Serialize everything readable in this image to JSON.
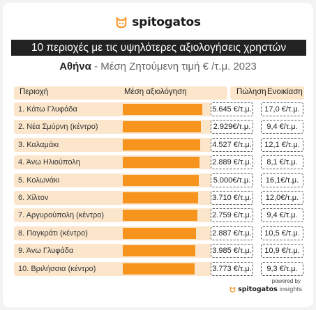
{
  "brand": {
    "name": "spitogatos",
    "powered_by": "powered by",
    "insights_brand": "spitogatos",
    "insights_suffix": "insights",
    "accent": "#f7941d"
  },
  "title": "10 περιοχές με τις υψηλότερες αξιολογήσεις χρηστών",
  "subtitle": {
    "city": "Αθήνα",
    "rest": " - Μέση Ζητούμενη τιμή € /τ.μ. 2023"
  },
  "headers": {
    "area": "Περιοχή",
    "rating": "Μέση αξιολόγηση",
    "sale": "Πώληση",
    "rent": "Ενοικίαση"
  },
  "chart_data": {
    "type": "table",
    "rows": [
      {
        "label": "1.  Κάτω Γλυφάδα",
        "rating": 1.0,
        "sale": "5.645 €/τ.μ.",
        "rent": "17,0 €/τ.μ."
      },
      {
        "label": "2.  Νέα Σμύρνη (κέντρο)",
        "rating": 0.985,
        "sale": "2.929€/τ.μ.",
        "rent": "9,4 €/τ.μ."
      },
      {
        "label": "3.  Καλαμάκι",
        "rating": 0.975,
        "sale": "4.527 €/τ.μ.",
        "rent": "12,1 €/τ.μ."
      },
      {
        "label": "4.  Άνω Ηλιούπολη",
        "rating": 0.965,
        "sale": "2.889 €/τ.μ.",
        "rent": "8,1 €/τ.μ."
      },
      {
        "label": "5.  Κολωνάκι",
        "rating": 0.955,
        "sale": "5.000€/τ.μ.",
        "rent": "16,1€/τ.μ."
      },
      {
        "label": "6.  Χίλτον",
        "rating": 0.945,
        "sale": "3.710 €/τ.μ.",
        "rent": "12,0€/τ.μ."
      },
      {
        "label": "7.  Αργυρούπολη (κέντρο)",
        "rating": 0.935,
        "sale": "2.759 €/τ.μ.",
        "rent": "9,4 €/τ.μ."
      },
      {
        "label": "8.  Παγκράτι (κέντρο)",
        "rating": 0.925,
        "sale": "2.887 €/τ.μ.",
        "rent": "10,5 €/τ.μ."
      },
      {
        "label": "9.  Άνω Γλυφάδα",
        "rating": 0.915,
        "sale": "3.985 €/τ.μ.",
        "rent": "10,9 €/τ.μ."
      },
      {
        "label": "10.  Βριλήσσια (κέντρο)",
        "rating": 0.9,
        "sale": "3.773 €/τ.μ.",
        "rent": "9,3 €/τ.μ."
      }
    ]
  }
}
